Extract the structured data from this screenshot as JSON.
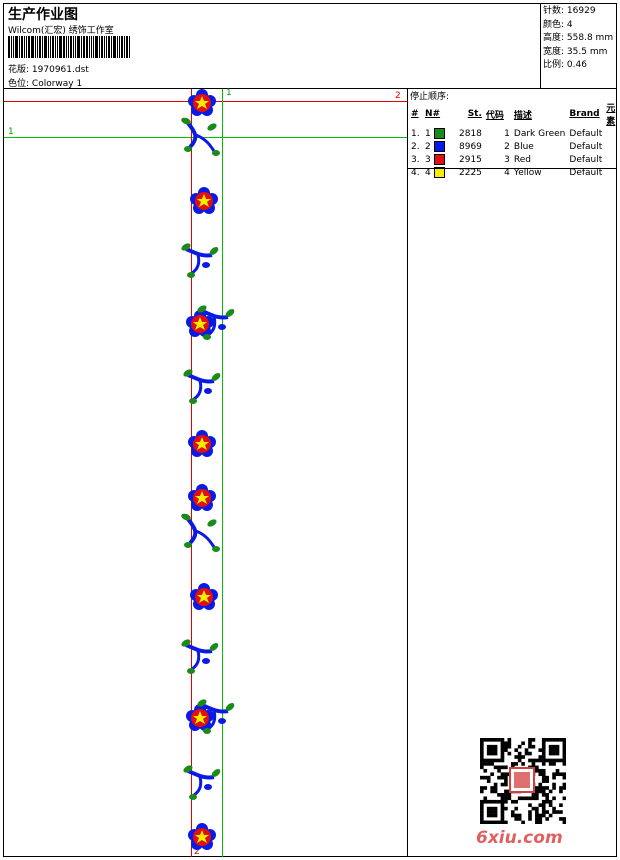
{
  "header": {
    "title": "生产作业图",
    "studio": "Wilcom(汇宏) 绣饰工作室",
    "design_label": "花版:",
    "design_value": "1970961.dst",
    "colorway_label": "色位:",
    "colorway_value": "Colorway 1"
  },
  "stats": [
    {
      "label": "针数:",
      "value": "16929"
    },
    {
      "label": "颜色:",
      "value": "4"
    },
    {
      "label": "高度:",
      "value": "558.8 mm"
    },
    {
      "label": "宽度:",
      "value": "35.5 mm"
    },
    {
      "label": "比例:",
      "value": "0.46"
    }
  ],
  "stop_sequence": {
    "title": "停止顺序:",
    "columns": [
      "#",
      "N#",
      "St.",
      "代码",
      "描述",
      "Brand",
      "元素"
    ],
    "rows": [
      {
        "num": "1.",
        "n": "1",
        "st": "2818",
        "code": "1",
        "desc": "Dark Green",
        "brand": "Default",
        "color": "#1a8a1a"
      },
      {
        "num": "2.",
        "n": "2",
        "st": "8969",
        "code": "2",
        "desc": "Blue",
        "brand": "Default",
        "color": "#0a1ae6"
      },
      {
        "num": "3.",
        "n": "3",
        "st": "2915",
        "code": "3",
        "desc": "Red",
        "brand": "Default",
        "color": "#e01010"
      },
      {
        "num": "4.",
        "n": "4",
        "st": "2225",
        "code": "4",
        "desc": "Yellow",
        "brand": "Default",
        "color": "#f5ee00"
      }
    ]
  },
  "guides": {
    "h_red_label": "2",
    "h_green_label": "1",
    "v_green_label": "1",
    "v_red_label": "2"
  },
  "watermark": "6xiu.com",
  "colors": {
    "green": "#1a8a1a",
    "blue": "#0a1ae6",
    "red": "#e01010",
    "yellow": "#f5ee00"
  }
}
